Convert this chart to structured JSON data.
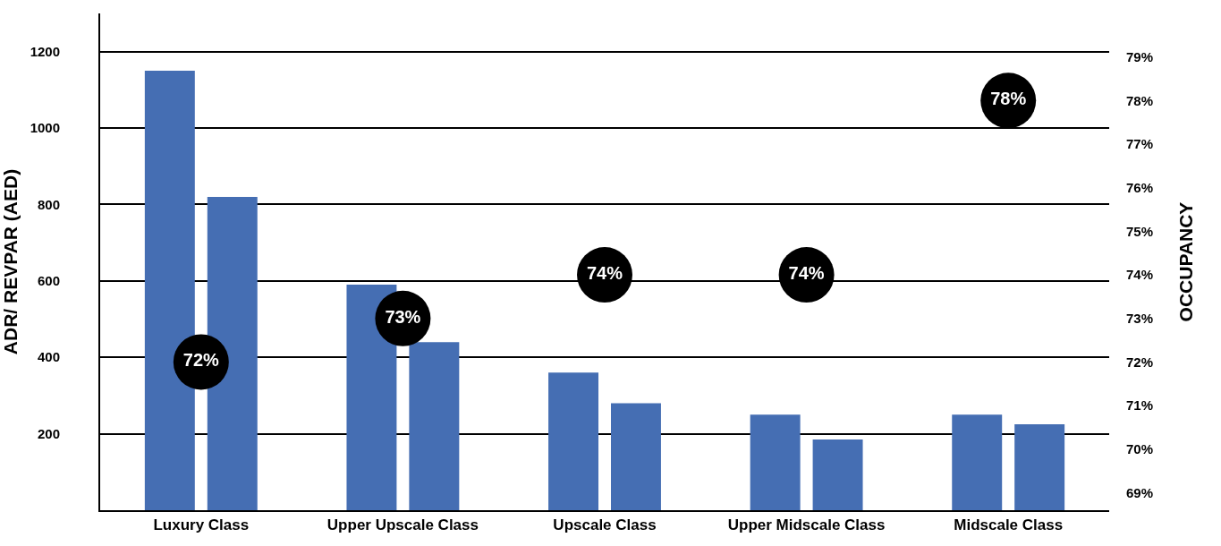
{
  "chart_data": {
    "type": "bar",
    "ylabel": "ADR/ REVPAR (AED)",
    "y2label": "OCCUPANCY",
    "categories": [
      "Luxury Class",
      "Upper Upscale Class",
      "Upscale Class",
      "Upper Midscale Class",
      "Midscale Class"
    ],
    "series": [
      {
        "color": "#456eb3",
        "values": [
          1150,
          590,
          360,
          250,
          250
        ]
      },
      {
        "color": "#456eb3",
        "values": [
          820,
          440,
          280,
          185,
          225
        ]
      },
      {
        "type": "scatter",
        "axis": "y2",
        "color": "#000000",
        "marker": "circle",
        "values": [
          72,
          73,
          74,
          74,
          78
        ],
        "value_labels": [
          "72%",
          "73%",
          "74%",
          "74%",
          "78%"
        ]
      }
    ],
    "ylim": [
      0,
      1300
    ],
    "yticks": [
      200,
      400,
      600,
      800,
      1000,
      1200
    ],
    "y2lim": [
      68.6,
      80
    ],
    "y2ticks": [
      {
        "value": 69,
        "label": "69%"
      },
      {
        "value": 70,
        "label": "70%"
      },
      {
        "value": 71,
        "label": "71%"
      },
      {
        "value": 72,
        "label": "72%"
      },
      {
        "value": 73,
        "label": "73%"
      },
      {
        "value": 74,
        "label": "74%"
      },
      {
        "value": 75,
        "label": "75%"
      },
      {
        "value": 76,
        "label": "76%"
      },
      {
        "value": 77,
        "label": "77%"
      },
      {
        "value": 78,
        "label": "78%"
      },
      {
        "value": 79,
        "label": "79%"
      }
    ],
    "grid": "y"
  }
}
